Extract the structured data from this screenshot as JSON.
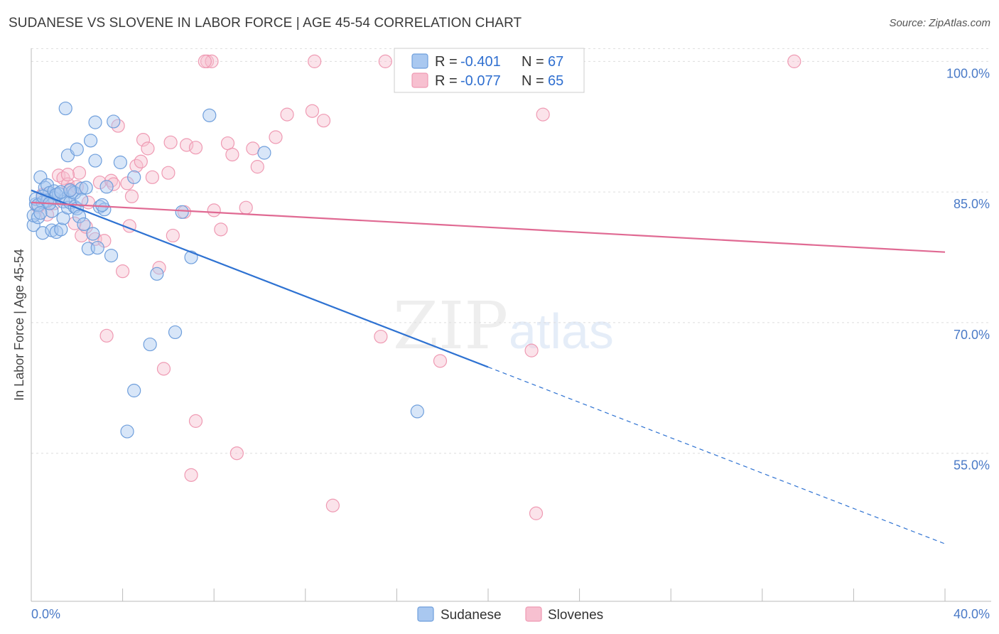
{
  "header": {
    "title": "SUDANESE VS SLOVENE IN LABOR FORCE | AGE 45-54 CORRELATION CHART",
    "source": "Source: ZipAtlas.com"
  },
  "watermark": {
    "zip": "ZIP",
    "atlas": "atlas"
  },
  "legend": {
    "rows": [
      {
        "r_label": "R = ",
        "r_value": "-0.401",
        "n_label": "N = ",
        "n_value": "67"
      },
      {
        "r_label": "R = ",
        "r_value": "-0.077",
        "n_label": "N = ",
        "n_value": "65"
      }
    ]
  },
  "colors": {
    "sudanese_fill": "#a9c8f0",
    "sudanese_stroke": "#6f9fdc",
    "sudanese_line": "#2e72d2",
    "slovenes_fill": "#f7c0d0",
    "slovenes_stroke": "#ef9ab3",
    "slovenes_line": "#e06a93",
    "grid": "#dddddd",
    "tick_text": "#4a7ac7"
  },
  "chart_data": {
    "type": "scatter",
    "ylabel": "In Labor Force | Age 45-54",
    "x_tick_labels": [
      "0.0%",
      "40.0%"
    ],
    "y_tick_labels": [
      "100.0%",
      "85.0%",
      "70.0%",
      "55.0%"
    ],
    "y_ticks": [
      100,
      85,
      70,
      55
    ],
    "xlim": [
      0,
      40
    ],
    "ylim": [
      38,
      101.5
    ],
    "grid": "horizontal dashed",
    "legend_position": "bottom-center",
    "series": [
      {
        "name": "Sudanese",
        "points": [
          [
            0.1,
            81.2
          ],
          [
            0.1,
            82.3
          ],
          [
            0.2,
            83.6
          ],
          [
            0.2,
            84.2
          ],
          [
            0.3,
            82.1
          ],
          [
            0.4,
            86.7
          ],
          [
            0.5,
            83.8
          ],
          [
            0.5,
            80.3
          ],
          [
            0.6,
            85.5
          ],
          [
            0.7,
            85.8
          ],
          [
            0.8,
            84.9
          ],
          [
            0.9,
            80.6
          ],
          [
            0.9,
            82.8
          ],
          [
            1.0,
            85.1
          ],
          [
            1.0,
            84.3
          ],
          [
            1.1,
            80.4
          ],
          [
            1.2,
            84.8
          ],
          [
            1.3,
            80.7
          ],
          [
            1.4,
            83.9
          ],
          [
            1.4,
            82.0
          ],
          [
            1.5,
            84.2
          ],
          [
            1.5,
            94.6
          ],
          [
            1.6,
            89.2
          ],
          [
            1.6,
            83.2
          ],
          [
            1.7,
            83.8
          ],
          [
            1.8,
            85.0
          ],
          [
            1.9,
            84.9
          ],
          [
            1.9,
            83.3
          ],
          [
            2.0,
            89.9
          ],
          [
            2.0,
            83.1
          ],
          [
            2.1,
            82.2
          ],
          [
            2.2,
            85.4
          ],
          [
            2.3,
            81.3
          ],
          [
            2.4,
            85.5
          ],
          [
            2.5,
            78.5
          ],
          [
            2.6,
            90.9
          ],
          [
            2.7,
            80.2
          ],
          [
            2.8,
            93.0
          ],
          [
            2.8,
            88.6
          ],
          [
            2.9,
            78.6
          ],
          [
            3.0,
            83.3
          ],
          [
            3.2,
            83.0
          ],
          [
            3.3,
            85.6
          ],
          [
            3.5,
            77.7
          ],
          [
            3.6,
            93.1
          ],
          [
            3.9,
            88.4
          ],
          [
            4.2,
            57.5
          ],
          [
            4.5,
            86.7
          ],
          [
            4.5,
            62.2
          ],
          [
            5.2,
            67.5
          ],
          [
            5.5,
            75.6
          ],
          [
            6.3,
            68.9
          ],
          [
            6.6,
            82.7
          ],
          [
            7.0,
            77.5
          ],
          [
            7.8,
            93.8
          ],
          [
            10.2,
            89.5
          ],
          [
            16.9,
            59.8
          ],
          [
            0.3,
            83.5
          ],
          [
            0.7,
            84.0
          ],
          [
            1.1,
            84.7
          ],
          [
            1.3,
            85.0
          ],
          [
            0.5,
            84.5
          ],
          [
            0.8,
            83.7
          ],
          [
            2.2,
            84.1
          ],
          [
            0.4,
            82.6
          ],
          [
            1.7,
            85.2
          ],
          [
            3.1,
            83.5
          ]
        ],
        "trend": {
          "x0": 0,
          "y0": 85.2,
          "x1": 20,
          "y1": 64.9,
          "dash_x1": 40,
          "dash_y1": 44.6
        }
      },
      {
        "name": "Slovenes",
        "points": [
          [
            0.3,
            83.3
          ],
          [
            0.5,
            84.7
          ],
          [
            0.7,
            82.4
          ],
          [
            1.0,
            83.7
          ],
          [
            1.2,
            86.9
          ],
          [
            1.4,
            86.6
          ],
          [
            1.6,
            85.9
          ],
          [
            1.7,
            85.3
          ],
          [
            1.9,
            81.4
          ],
          [
            2.1,
            87.2
          ],
          [
            2.2,
            80.0
          ],
          [
            2.4,
            81.0
          ],
          [
            2.5,
            83.8
          ],
          [
            2.8,
            79.6
          ],
          [
            3.0,
            86.1
          ],
          [
            3.2,
            79.4
          ],
          [
            3.3,
            68.5
          ],
          [
            3.5,
            86.3
          ],
          [
            3.6,
            85.9
          ],
          [
            3.8,
            92.6
          ],
          [
            4.0,
            75.9
          ],
          [
            4.2,
            86.0
          ],
          [
            4.3,
            81.1
          ],
          [
            4.4,
            84.5
          ],
          [
            4.6,
            88.0
          ],
          [
            4.8,
            88.5
          ],
          [
            4.9,
            91.0
          ],
          [
            5.1,
            90.0
          ],
          [
            5.3,
            86.7
          ],
          [
            5.6,
            76.3
          ],
          [
            5.8,
            64.7
          ],
          [
            6.0,
            87.2
          ],
          [
            6.1,
            90.7
          ],
          [
            6.2,
            80.0
          ],
          [
            6.7,
            82.7
          ],
          [
            6.8,
            90.4
          ],
          [
            7.2,
            90.1
          ],
          [
            7.2,
            58.7
          ],
          [
            7.0,
            52.5
          ],
          [
            7.7,
            100.0
          ],
          [
            7.9,
            100.0
          ],
          [
            8.0,
            82.9
          ],
          [
            8.3,
            80.7
          ],
          [
            8.6,
            90.6
          ],
          [
            8.8,
            89.3
          ],
          [
            9.0,
            55.0
          ],
          [
            9.4,
            83.2
          ],
          [
            9.7,
            90.0
          ],
          [
            9.9,
            87.9
          ],
          [
            10.7,
            91.3
          ],
          [
            11.2,
            93.9
          ],
          [
            12.3,
            94.3
          ],
          [
            12.4,
            100.0
          ],
          [
            12.8,
            93.2
          ],
          [
            13.2,
            49.0
          ],
          [
            15.3,
            68.4
          ],
          [
            15.5,
            100.0
          ],
          [
            17.9,
            65.6
          ],
          [
            21.9,
            66.8
          ],
          [
            22.1,
            48.1
          ],
          [
            22.4,
            93.9
          ],
          [
            33.4,
            100.0
          ],
          [
            7.6,
            100.0
          ],
          [
            1.6,
            87.0
          ],
          [
            2.0,
            85.6
          ]
        ],
        "trend": {
          "x0": 0,
          "y0": 83.8,
          "x1": 40,
          "y1": 78.1
        }
      }
    ]
  }
}
